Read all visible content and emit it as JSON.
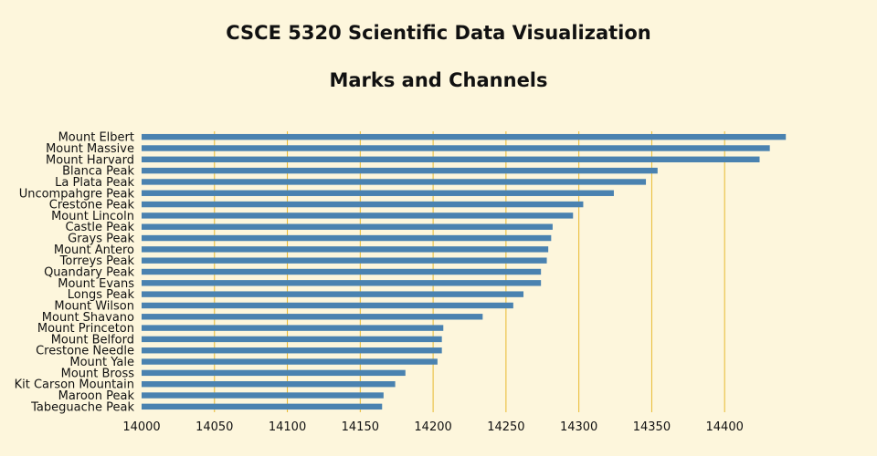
{
  "header": {
    "title": "CSCE 5320 Scientific Data Visualization",
    "subtitle": "Marks and Channels"
  },
  "colors": {
    "background": "#fdf6dc",
    "bar": "#4a82b0",
    "grid": "#e8b92e"
  },
  "chart_data": {
    "type": "bar",
    "orientation": "horizontal",
    "title": "CSCE 5320 Scientific Data Visualization",
    "subtitle": "Marks and Channels",
    "xlabel": "",
    "ylabel": "",
    "xlim": [
      14000,
      14445
    ],
    "xticks": [
      14000,
      14050,
      14100,
      14150,
      14200,
      14250,
      14300,
      14350,
      14400
    ],
    "grid": "vertical",
    "categories": [
      "Mount Elbert",
      "Mount Massive",
      "Mount Harvard",
      "Blanca Peak",
      "La Plata Peak",
      "Uncompahgre Peak",
      "Crestone Peak",
      "Mount Lincoln",
      "Castle Peak",
      "Grays Peak",
      "Mount Antero",
      "Torreys Peak",
      "Quandary Peak",
      "Mount Evans",
      "Longs Peak",
      "Mount Wilson",
      "Mount Shavano",
      "Mount Princeton",
      "Mount Belford",
      "Crestone Needle",
      "Mount Yale",
      "Mount Bross",
      "Kit Carson Mountain",
      "Maroon Peak",
      "Tabeguache Peak"
    ],
    "values": [
      14442,
      14431,
      14424,
      14354,
      14346,
      14324,
      14303,
      14296,
      14282,
      14281,
      14279,
      14278,
      14274,
      14274,
      14262,
      14255,
      14234,
      14207,
      14206,
      14206,
      14203,
      14181,
      14174,
      14166,
      14165
    ]
  }
}
